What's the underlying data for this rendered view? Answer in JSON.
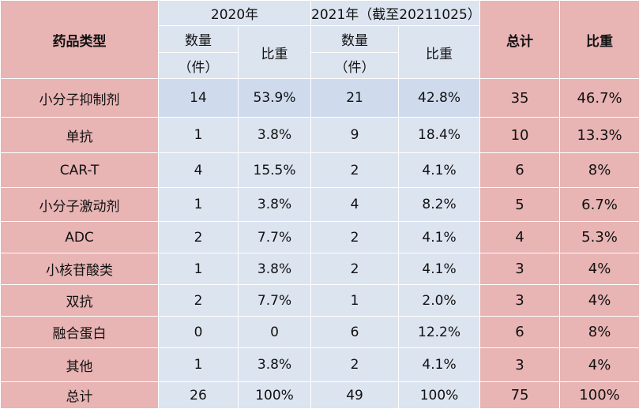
{
  "header": {
    "type_col": "药品类型",
    "year_2020": "2020年",
    "year_2021": "2021年（截至20211025）",
    "count_line1": "数量",
    "count_line2": "（件）",
    "share": "比重",
    "total": "总计",
    "total_share": "比重"
  },
  "rows": [
    {
      "type": "小分子抑制剂",
      "c2020": "14",
      "s2020": "53.9%",
      "c2021": "21",
      "s2021": "42.8%",
      "total": "35",
      "share": "46.7%"
    },
    {
      "type": "单抗",
      "c2020": "1",
      "s2020": "3.8%",
      "c2021": "9",
      "s2021": "18.4%",
      "total": "10",
      "share": "13.3%"
    },
    {
      "type": "CAR-T",
      "c2020": "4",
      "s2020": "15.5%",
      "c2021": "2",
      "s2021": "4.1%",
      "total": "6",
      "share": "8%"
    },
    {
      "type": "小分子激动剂",
      "c2020": "1",
      "s2020": "3.8%",
      "c2021": "4",
      "s2021": "8.2%",
      "total": "5",
      "share": "6.7%"
    },
    {
      "type": "ADC",
      "c2020": "2",
      "s2020": "7.7%",
      "c2021": "2",
      "s2021": "4.1%",
      "total": "4",
      "share": "5.3%"
    },
    {
      "type": "小核苷酸类",
      "c2020": "1",
      "s2020": "3.8%",
      "c2021": "2",
      "s2021": "4.1%",
      "total": "3",
      "share": "4%"
    },
    {
      "type": "双抗",
      "c2020": "2",
      "s2020": "7.7%",
      "c2021": "1",
      "s2021": "2.0%",
      "total": "3",
      "share": "4%"
    },
    {
      "type": "融合蛋白",
      "c2020": "0",
      "s2020": "0",
      "c2021": "6",
      "s2021": "12.2%",
      "total": "6",
      "share": "8%"
    },
    {
      "type": "其他",
      "c2020": "1",
      "s2020": "3.8%",
      "c2021": "2",
      "s2021": "4.1%",
      "total": "3",
      "share": "4%"
    }
  ],
  "total_row": {
    "type": "总计",
    "c2020": "26",
    "s2020": "100%",
    "c2021": "49",
    "s2021": "100%",
    "total": "75",
    "share": "100%"
  },
  "colors": {
    "pink": "#e8b4b4",
    "light_blue": "#dce4f0",
    "highlight_blue": "#cfdbed"
  }
}
